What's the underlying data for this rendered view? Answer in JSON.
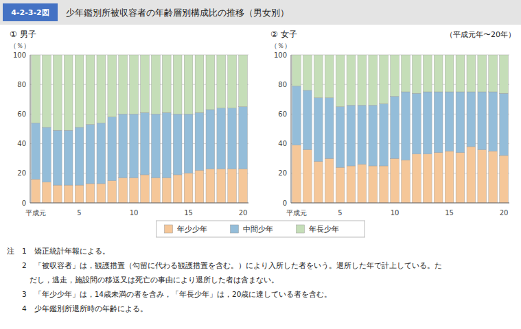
{
  "title": "少年鑑別所被収容者の年齢層別構成比の推移（男女別）",
  "annotations": [
    "4-2-3-2図",
    "（平成元年〜20年）"
  ],
  "notes": [
    "注　1　矯正統計年報による。",
    "　　2　「被収容者」は，観護措置（勾留に代わる観護措置を含む。）により入所した者をいう。退所した年で計上している。た",
    "　　　だし，逃走，施設間の移送又は死亡の事由により退所した者は含まない。",
    "　　3　「年少少年」は，14歳未満の者を含み，「年長少年」は，20歳に達している者を含む。",
    "　　4　少年鑑別所退所時の年齢による。"
  ],
  "chart_data": [
    {
      "type": "bar",
      "stacked": true,
      "title": "① 男子",
      "y_label": "（％）",
      "categories": [
        "平成元",
        null,
        null,
        null,
        "5",
        null,
        null,
        null,
        null,
        "10",
        null,
        null,
        null,
        null,
        "15",
        null,
        null,
        null,
        null,
        "20"
      ],
      "ylim": [
        0,
        100
      ],
      "yticks": [
        0,
        20,
        40,
        60,
        80,
        100
      ],
      "grid": true,
      "legend": "bottom",
      "series": [
        {
          "name": "年少少年",
          "color": "#F5C799",
          "values": [
            16,
            14,
            12,
            12,
            12,
            13,
            13,
            15,
            17,
            17,
            19,
            17,
            17,
            19,
            20,
            22,
            23,
            23,
            23,
            23
          ]
        },
        {
          "name": "中間少年",
          "color": "#94BDD9",
          "values": [
            38,
            37,
            37,
            37,
            39,
            40,
            41,
            43,
            43,
            43,
            42,
            43,
            44,
            41,
            40,
            39,
            40,
            41,
            41,
            42
          ]
        },
        {
          "name": "年長少年",
          "color": "#C5DEB8",
          "values": [
            46,
            49,
            51,
            51,
            49,
            47,
            46,
            42,
            40,
            40,
            39,
            40,
            39,
            40,
            40,
            39,
            37,
            36,
            36,
            35
          ]
        }
      ]
    },
    {
      "type": "bar",
      "stacked": true,
      "title": "② 女子",
      "y_label": "（％）",
      "categories": [
        "平成元",
        null,
        null,
        null,
        "5",
        null,
        null,
        null,
        null,
        "10",
        null,
        null,
        null,
        null,
        "15",
        null,
        null,
        null,
        null,
        "20"
      ],
      "ylim": [
        0,
        100
      ],
      "yticks": [
        0,
        20,
        40,
        60,
        80,
        100
      ],
      "grid": true,
      "legend": "bottom",
      "series": [
        {
          "name": "年少少年",
          "color": "#F5C799",
          "values": [
            39,
            36,
            28,
            30,
            24,
            25,
            26,
            25,
            25,
            30,
            29,
            33,
            33,
            34,
            35,
            34,
            38,
            36,
            35,
            32
          ]
        },
        {
          "name": "中間少年",
          "color": "#94BDD9",
          "values": [
            40,
            40,
            43,
            41,
            41,
            41,
            40,
            41,
            42,
            42,
            46,
            41,
            42,
            41,
            40,
            41,
            37,
            39,
            40,
            42
          ]
        },
        {
          "name": "年長少年",
          "color": "#C5DEB8",
          "values": [
            21,
            24,
            29,
            29,
            35,
            34,
            34,
            34,
            33,
            28,
            25,
            26,
            25,
            25,
            25,
            25,
            25,
            25,
            25,
            26
          ]
        }
      ]
    }
  ]
}
